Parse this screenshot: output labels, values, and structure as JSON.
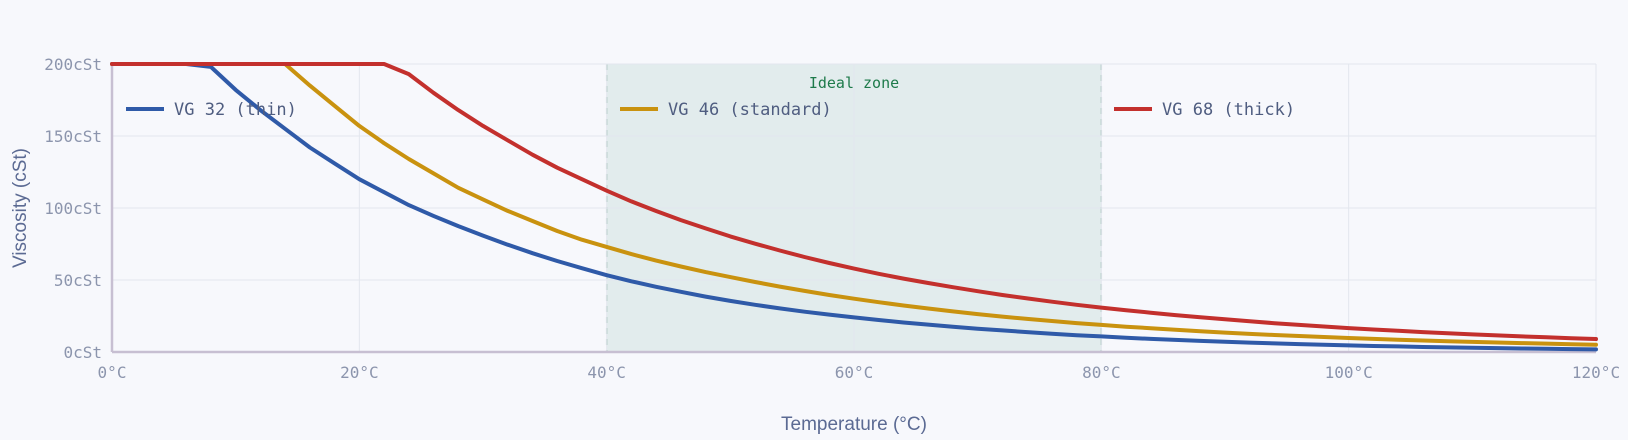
{
  "chart_data": {
    "type": "line",
    "xlabel": "Temperature (°C)",
    "ylabel": "Viscosity (cSt)",
    "xlim": [
      0,
      120
    ],
    "ylim": [
      0,
      200
    ],
    "x_ticks": [
      0,
      20,
      40,
      60,
      80,
      100,
      120
    ],
    "y_ticks": [
      0,
      50,
      100,
      150,
      200
    ],
    "x_tick_labels": [
      "0°C",
      "20°C",
      "40°C",
      "60°C",
      "80°C",
      "100°C",
      "120°C"
    ],
    "y_tick_labels": [
      "0cSt",
      "50cSt",
      "100cSt",
      "150cSt",
      "200cSt"
    ],
    "grid": true,
    "legend_position": "top",
    "band": {
      "label": "Ideal zone",
      "from": 40,
      "to": 80,
      "color": "#2f8a6a"
    },
    "x": [
      0,
      2,
      4,
      6,
      8,
      10,
      12,
      14,
      16,
      18,
      20,
      22,
      24,
      26,
      28,
      30,
      32,
      34,
      36,
      38,
      40,
      42,
      44,
      46,
      48,
      50,
      52,
      54,
      56,
      58,
      60,
      62,
      64,
      66,
      68,
      70,
      72,
      74,
      76,
      78,
      80,
      82,
      84,
      86,
      88,
      90,
      92,
      94,
      96,
      98,
      100,
      102,
      104,
      106,
      108,
      110,
      112,
      114,
      116,
      118,
      120
    ],
    "series": [
      {
        "name": "VG 32 (thin)",
        "color": "#2f5aa8",
        "values": [
          200,
          200,
          200,
          200,
          198,
          182,
          168,
          155,
          142,
          131,
          120,
          111,
          102,
          94.5,
          87.4,
          80.8,
          74.5,
          68.6,
          63.2,
          58.2,
          53.3,
          49.1,
          45.3,
          41.8,
          38.5,
          35.5,
          32.8,
          30.3,
          28.0,
          26.0,
          24.0,
          22.2,
          20.5,
          19.0,
          17.5,
          16.2,
          15.0,
          13.8,
          12.7,
          11.7,
          10.8,
          9.9,
          9.1,
          8.4,
          7.7,
          7.1,
          6.5,
          6.0,
          5.5,
          5.0,
          4.6,
          4.2,
          3.9,
          3.5,
          3.2,
          2.9,
          2.7,
          2.4,
          2.2,
          2.0,
          1.8
        ]
      },
      {
        "name": "VG 46 (standard)",
        "color": "#c9920f",
        "values": [
          200,
          200,
          200,
          200,
          200,
          200,
          200,
          200,
          185,
          171,
          157,
          145,
          134,
          124,
          114,
          106,
          98,
          91,
          84,
          78,
          73,
          68,
          63.5,
          59.4,
          55.5,
          52.0,
          48.6,
          45.4,
          42.4,
          39.6,
          37.0,
          34.6,
          32.3,
          30.2,
          28.2,
          26.3,
          24.6,
          23.0,
          21.5,
          20.1,
          18.8,
          17.6,
          16.5,
          15.4,
          14.4,
          13.5,
          12.6,
          11.8,
          11.1,
          10.4,
          9.7,
          9.1,
          8.5,
          8.0,
          7.5,
          7.0,
          6.6,
          6.2,
          5.8,
          5.4,
          5.1
        ]
      },
      {
        "name": "VG 68 (thick)",
        "color": "#c3302d",
        "values": [
          200,
          200,
          200,
          200,
          200,
          200,
          200,
          200,
          200,
          200,
          200,
          200,
          193,
          180,
          168,
          157,
          147,
          137,
          128,
          120,
          112,
          104.6,
          97.9,
          91.6,
          85.8,
          80.3,
          75.2,
          70.5,
          66.0,
          61.8,
          57.9,
          54.3,
          51.0,
          47.9,
          45.0,
          42.2,
          39.6,
          37.2,
          34.9,
          32.8,
          30.8,
          29.0,
          27.3,
          25.6,
          24.1,
          22.7,
          21.3,
          20.0,
          18.8,
          17.7,
          16.6,
          15.6,
          14.7,
          13.8,
          13.0,
          12.2,
          11.5,
          10.8,
          10.2,
          9.6,
          9.0
        ]
      }
    ]
  }
}
